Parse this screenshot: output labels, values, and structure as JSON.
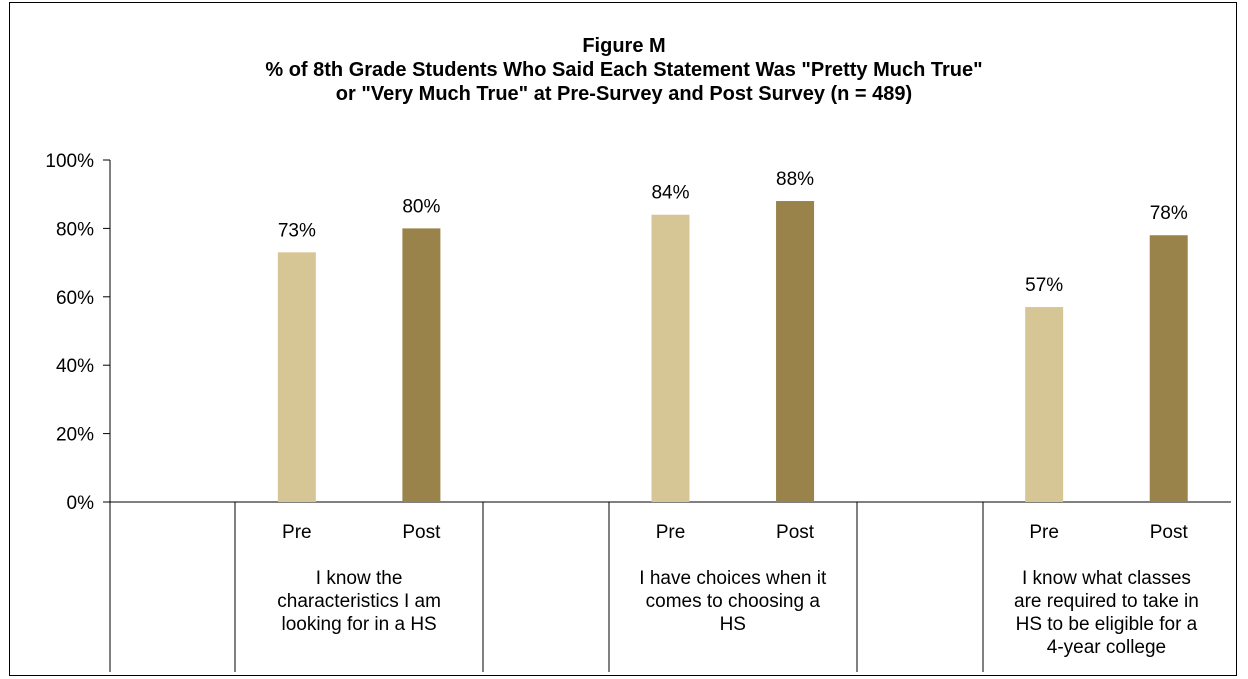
{
  "chart_data": {
    "type": "bar",
    "title": "Figure M",
    "subtitle_lines": [
      "% of 8th Grade Students Who Said Each Statement Was \"Pretty Much True\"",
      "or \"Very Much True\" at Pre-Survey and Post Survey (n = 489)"
    ],
    "ylim": [
      0,
      100
    ],
    "y_ticks": [
      "0%",
      "20%",
      "40%",
      "60%",
      "80%",
      "100%"
    ],
    "groups": [
      {
        "label": "I know the characteristics I am looking for in a HS",
        "label_lines": [
          "I know the",
          "characteristics I am",
          "looking for in a HS"
        ],
        "bars": [
          {
            "name": "Pre",
            "value": 73,
            "label": "73%"
          },
          {
            "name": "Post",
            "value": 80,
            "label": "80%"
          }
        ]
      },
      {
        "label": "I have choices when it comes to choosing a HS",
        "label_lines": [
          "I have choices when it",
          "comes to choosing a",
          "HS"
        ],
        "bars": [
          {
            "name": "Pre",
            "value": 84,
            "label": "84%"
          },
          {
            "name": "Post",
            "value": 88,
            "label": "88%"
          }
        ]
      },
      {
        "label": "I know what classes are required to take in HS to be eligible for a 4-year college",
        "label_lines": [
          "I know what classes",
          "are required to take in",
          "HS to be eligible for a",
          "4-year college"
        ],
        "bars": [
          {
            "name": "Pre",
            "value": 57,
            "label": "57%"
          },
          {
            "name": "Post",
            "value": 78,
            "label": "78%"
          }
        ]
      }
    ],
    "colors": {
      "Pre": "#d6c595",
      "Post": "#9a824b"
    },
    "grid": false,
    "legend": "none"
  }
}
